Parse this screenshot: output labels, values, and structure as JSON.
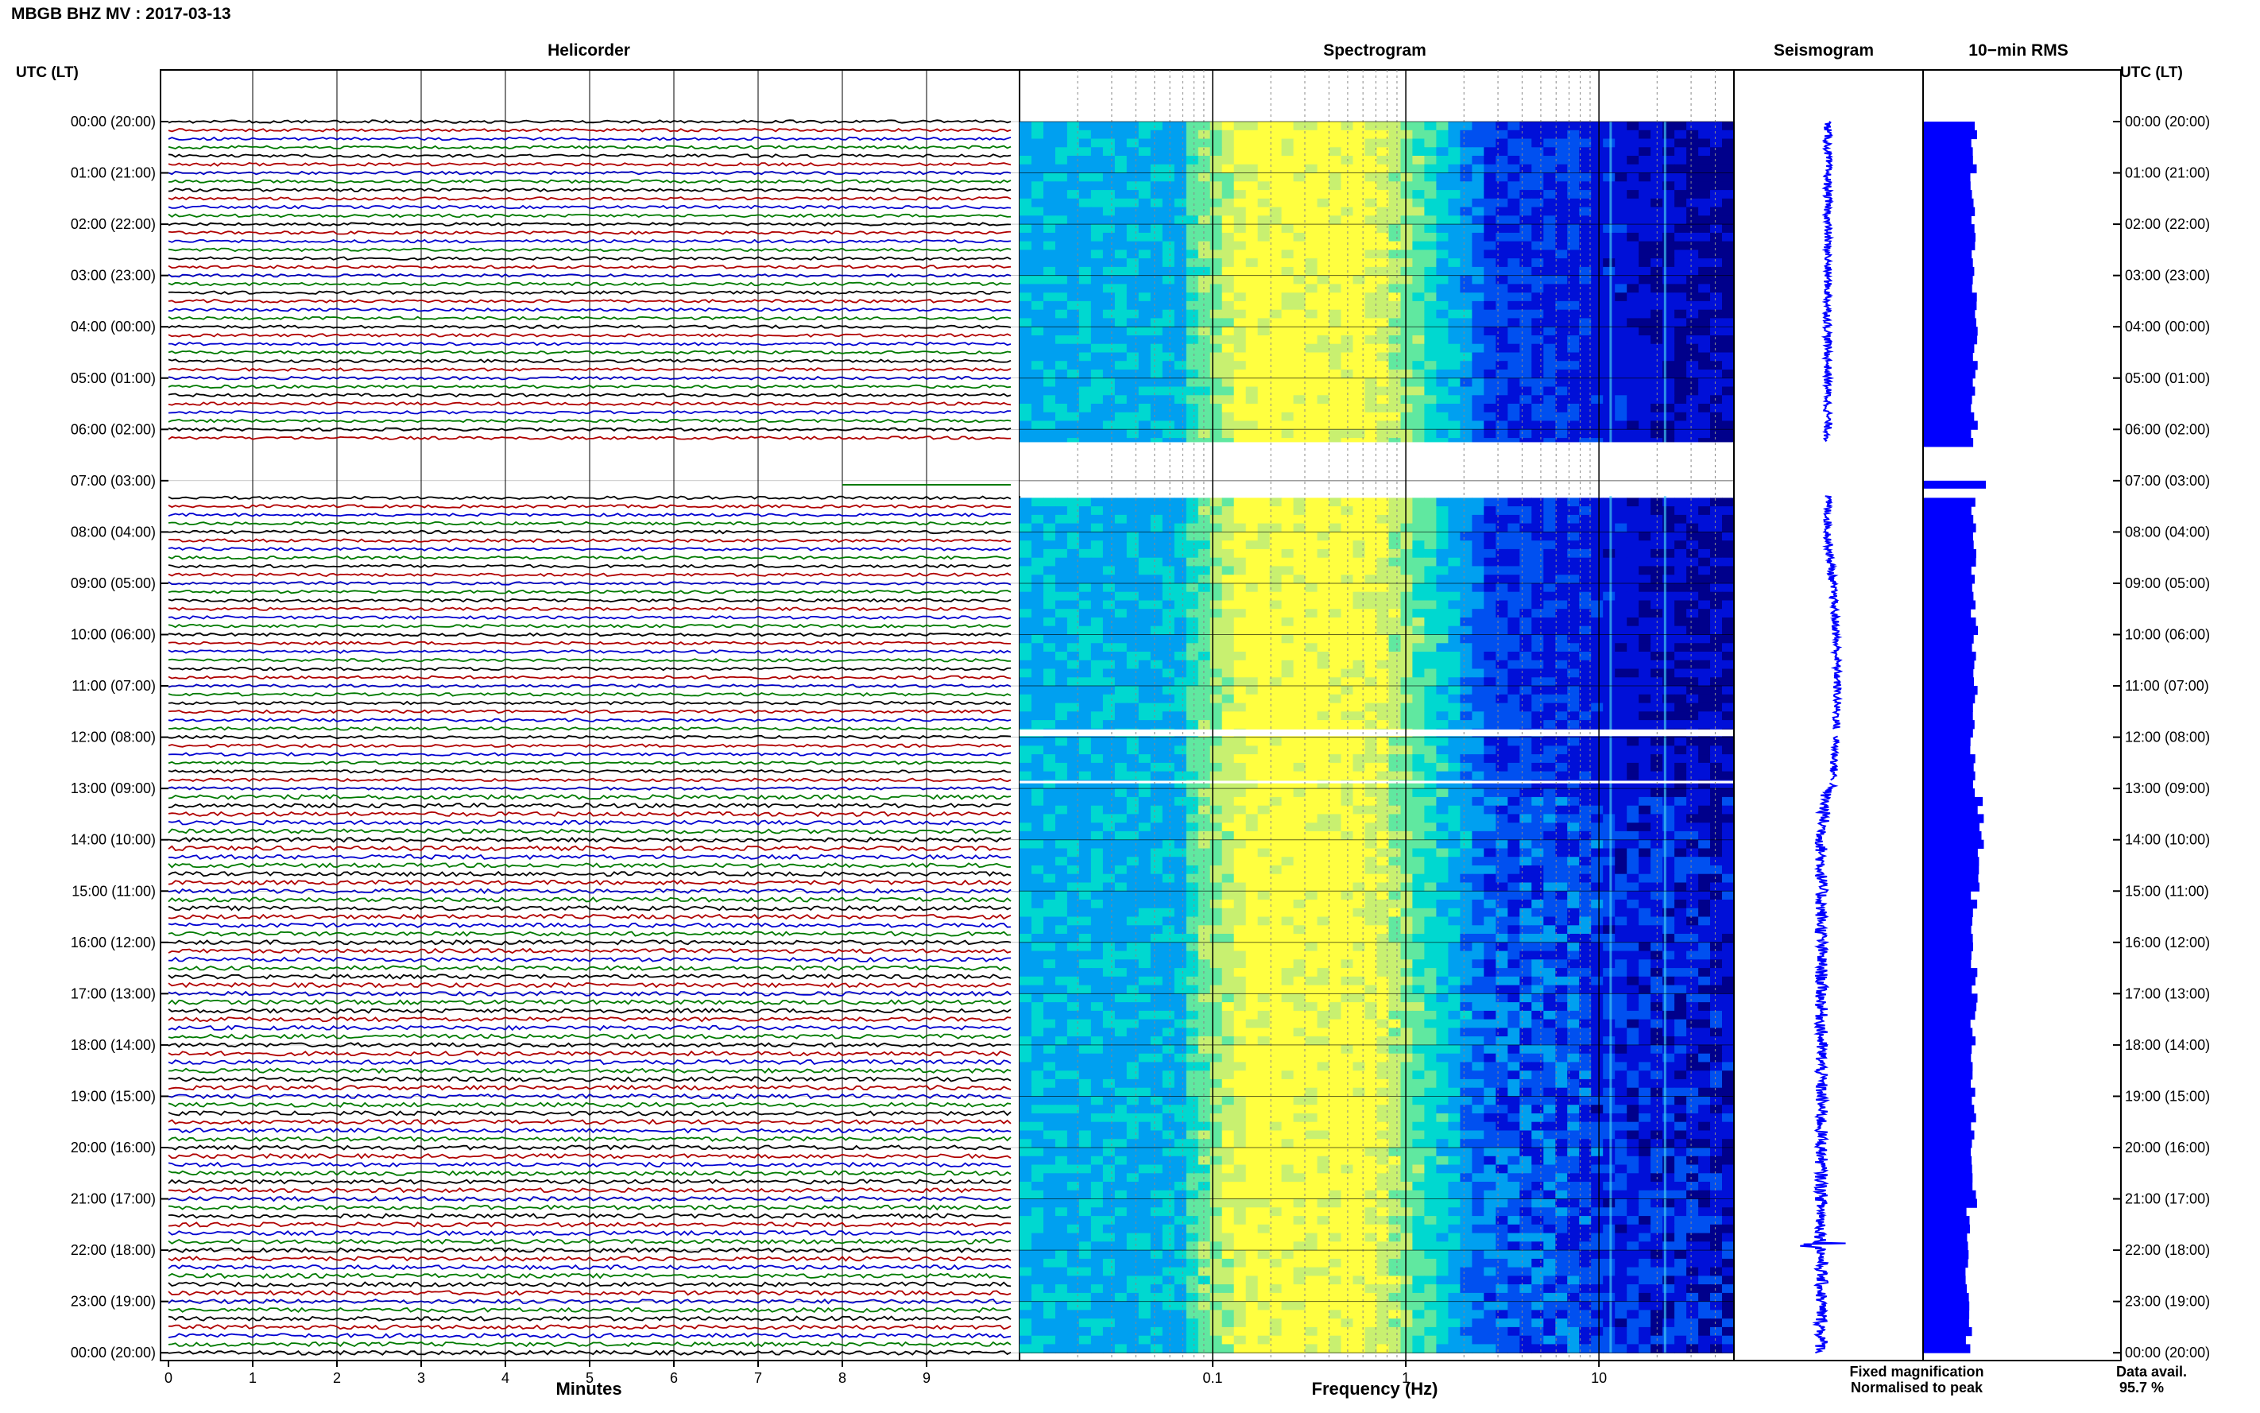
{
  "header": {
    "title": "MBGB BHZ MV : 2017-03-13"
  },
  "panels": {
    "helicorder": "Helicorder",
    "spectrogram": "Spectrogram",
    "seismogram": "Seismogram",
    "rms": "10−min RMS"
  },
  "axis": {
    "utc_left": "UTC (LT)",
    "utc_right": "UTC (LT)",
    "x_helicorder": "Minutes",
    "x_spectrogram": "Frequency (Hz)"
  },
  "legend": {
    "fixed": "Fixed magnification",
    "normalised": "Normalised to peak",
    "fixed_color": "#0000ff",
    "normalised_color": "#ff0000"
  },
  "availability": {
    "label": "Data avail.",
    "value": "95.7 %"
  },
  "chart_data": {
    "type": "heatmap",
    "row_ticks": [
      "00:00 (20:00)",
      "01:00 (21:00)",
      "02:00 (22:00)",
      "03:00 (23:00)",
      "04:00 (00:00)",
      "05:00 (01:00)",
      "06:00 (02:00)",
      "07:00 (03:00)",
      "08:00 (04:00)",
      "09:00 (05:00)",
      "10:00 (06:00)",
      "11:00 (07:00)",
      "12:00 (08:00)",
      "13:00 (09:00)",
      "14:00 (10:00)",
      "15:00 (11:00)",
      "16:00 (12:00)",
      "17:00 (13:00)",
      "18:00 (14:00)",
      "19:00 (15:00)",
      "20:00 (16:00)",
      "21:00 (17:00)",
      "22:00 (18:00)",
      "23:00 (19:00)",
      "00:00 (20:00)"
    ],
    "helicorder_minute_ticks": [
      "0",
      "1",
      "2",
      "3",
      "4",
      "5",
      "6",
      "7",
      "8",
      "9"
    ],
    "helicorder_xlim": [
      0,
      10
    ],
    "trace_colors": [
      "#000000",
      "#b00000",
      "#0000d0",
      "#007a00"
    ],
    "frequency_ticks": [
      "0.1",
      "1",
      "10"
    ],
    "frequency_xlim": [
      0.01,
      50
    ],
    "frequency_scale": "log",
    "data_gaps_utc": [
      [
        6.25,
        7.3
      ],
      [
        11.85,
        11.98
      ],
      [
        12.85,
        12.9
      ]
    ],
    "colormap": [
      "#00008b",
      "#0010d8",
      "#0050f0",
      "#00a0f0",
      "#00d8d0",
      "#60e8a0",
      "#c8f070",
      "#ffff40"
    ]
  }
}
